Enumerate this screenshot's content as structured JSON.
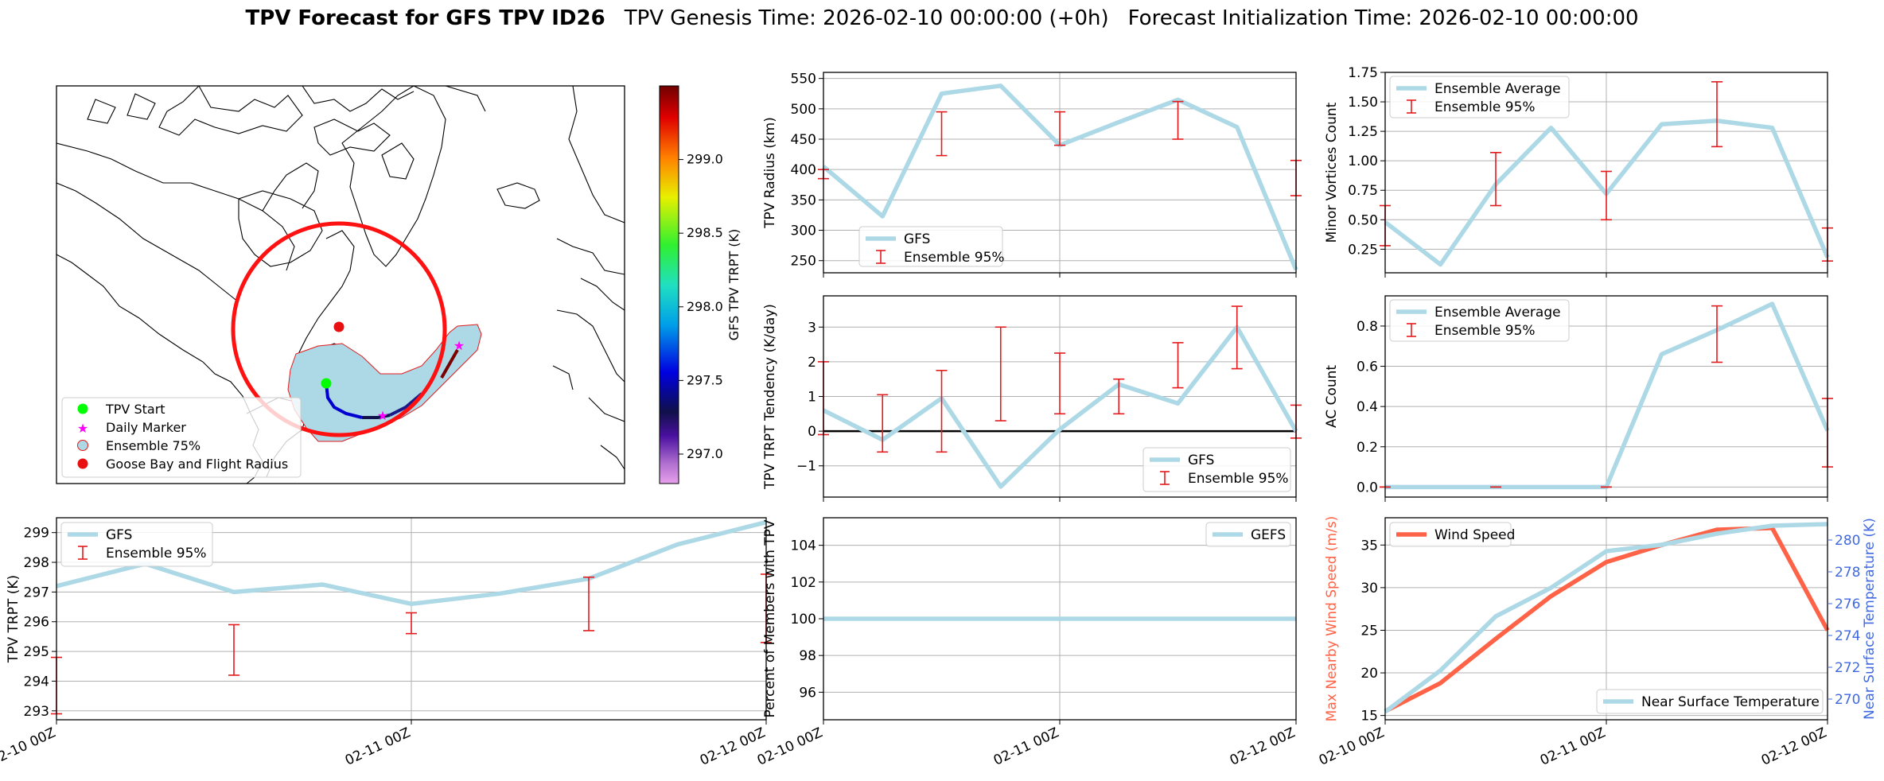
{
  "title": {
    "bold": "TPV Forecast for GFS TPV ID26",
    "genesis": "TPV Genesis Time: 2026-02-10 00:00:00 (+0h)",
    "init": "Forecast Initialization Time: 2026-02-10 00:00:00"
  },
  "map": {
    "colorbar_label": "GFS TPV TRPT (K)",
    "colorbar_ticks": [
      "297.0",
      "297.5",
      "298.0",
      "298.5",
      "299.0"
    ],
    "colorbar_range": [
      296.8,
      299.5
    ],
    "legend": [
      "TPV Start",
      "Daily Marker",
      "Ensemble 75%",
      "Goose Bay and Flight Radius"
    ]
  },
  "colors": {
    "line": "#ADD8E6",
    "error": "#E41A1C",
    "wind": "#FF6347",
    "temp_axis": "#4169E1",
    "circle": "#FF0000",
    "start": "#00FF00",
    "marker": "#FF00FF"
  },
  "chart_data": [
    {
      "id": "radius",
      "type": "line",
      "ylabel": "TPV Radius (km)",
      "ylim": [
        230,
        560
      ],
      "yticks": [
        "250",
        "300",
        "350",
        "400",
        "450",
        "500",
        "550"
      ],
      "x": [
        0,
        0.25,
        0.5,
        0.75,
        1.0,
        1.25,
        1.5,
        1.75,
        2.0
      ],
      "series": [
        {
          "name": "GFS",
          "values": [
            405,
            323,
            525,
            538,
            440,
            478,
            515,
            470,
            235
          ]
        }
      ],
      "errorbars": {
        "name": "Ensemble 95%",
        "x": [
          0,
          0.5,
          1.0,
          1.5,
          2.0
        ],
        "low": [
          385,
          423,
          440,
          450,
          357
        ],
        "high": [
          400,
          495,
          495,
          512,
          415
        ]
      },
      "legend": "bottom-left"
    },
    {
      "id": "minor",
      "type": "line",
      "ylabel": "Minor Vortices Count",
      "ylim": [
        0.05,
        1.75
      ],
      "yticks": [
        "0.25",
        "0.50",
        "0.75",
        "1.00",
        "1.25",
        "1.50",
        "1.75"
      ],
      "x": [
        0,
        0.25,
        0.5,
        0.75,
        1.0,
        1.25,
        1.5,
        1.75,
        2.0
      ],
      "series": [
        {
          "name": "Ensemble Average",
          "values": [
            0.48,
            0.12,
            0.8,
            1.28,
            0.72,
            1.31,
            1.34,
            1.28,
            0.18
          ]
        }
      ],
      "errorbars": {
        "name": "Ensemble 95%",
        "x": [
          0,
          0.5,
          1.0,
          1.5,
          2.0
        ],
        "low": [
          0.28,
          0.62,
          0.5,
          1.12,
          0.15
        ],
        "high": [
          0.62,
          1.07,
          0.91,
          1.67,
          0.43
        ]
      },
      "legend": "top-left"
    },
    {
      "id": "tend",
      "type": "line",
      "ylabel": "TPV TRPT Tendency (K/day)",
      "ylim": [
        -1.9,
        3.9
      ],
      "yticks": [
        "−1",
        "0",
        "1",
        "2",
        "3"
      ],
      "zero_line": true,
      "x": [
        0,
        0.25,
        0.5,
        0.75,
        1.0,
        1.25,
        1.5,
        1.75,
        2.0
      ],
      "series": [
        {
          "name": "GFS",
          "values": [
            0.6,
            -0.25,
            0.95,
            -1.6,
            0.05,
            1.35,
            0.8,
            3.0,
            0.0
          ]
        }
      ],
      "errorbars": {
        "name": "Ensemble 95%",
        "x": [
          0,
          0.25,
          0.5,
          0.75,
          1.0,
          1.25,
          1.5,
          1.75,
          2.0
        ],
        "low": [
          -0.1,
          -0.6,
          -0.6,
          0.3,
          0.5,
          0.5,
          1.25,
          1.8,
          -0.2
        ],
        "high": [
          2.0,
          1.05,
          1.75,
          3.0,
          2.25,
          1.5,
          2.55,
          3.6,
          0.75
        ]
      },
      "legend": "bottom-right"
    },
    {
      "id": "ac",
      "type": "line",
      "ylabel": "AC Count",
      "ylim": [
        -0.05,
        0.95
      ],
      "yticks": [
        "0.0",
        "0.2",
        "0.4",
        "0.6",
        "0.8"
      ],
      "x": [
        0,
        0.25,
        0.5,
        0.75,
        1.0,
        1.25,
        1.5,
        1.75,
        2.0
      ],
      "series": [
        {
          "name": "Ensemble Average",
          "values": [
            0,
            0,
            0,
            0,
            0,
            0.66,
            0.78,
            0.91,
            0.28
          ]
        }
      ],
      "errorbars": {
        "name": "Ensemble 95%",
        "x": [
          0,
          0.5,
          1.0,
          1.5,
          2.0
        ],
        "low": [
          0,
          0,
          0,
          0.62,
          0.1
        ],
        "high": [
          0,
          0,
          0,
          0.9,
          0.44
        ]
      },
      "legend": "top-left"
    },
    {
      "id": "trpt",
      "type": "line",
      "ylabel": "TPV TRPT (K)",
      "ylim": [
        292.7,
        299.5
      ],
      "yticks": [
        "293",
        "294",
        "295",
        "296",
        "297",
        "298",
        "299"
      ],
      "xticks": [
        "02-10 00Z",
        "02-11 00Z",
        "02-12 00Z"
      ],
      "x": [
        0,
        0.25,
        0.5,
        0.75,
        1.0,
        1.25,
        1.5,
        1.75,
        2.0
      ],
      "series": [
        {
          "name": "GFS",
          "values": [
            297.2,
            297.95,
            297.0,
            297.25,
            296.6,
            296.95,
            297.45,
            298.6,
            299.35
          ]
        }
      ],
      "errorbars": {
        "name": "Ensemble 95%",
        "x": [
          0,
          0.5,
          1.0,
          1.5,
          2.0
        ],
        "low": [
          292.9,
          294.2,
          295.6,
          295.7,
          295.3
        ],
        "high": [
          294.8,
          295.9,
          296.3,
          297.5,
          297.6
        ]
      },
      "legend": "top-left"
    },
    {
      "id": "pct",
      "type": "line",
      "ylabel": "Percent of Members with TPV",
      "ylim": [
        94.5,
        105.5
      ],
      "yticks": [
        "96",
        "98",
        "100",
        "102",
        "104"
      ],
      "xticks": [
        "02-10 00Z",
        "02-11 00Z",
        "02-12 00Z"
      ],
      "x": [
        0,
        2.0
      ],
      "series": [
        {
          "name": "GEFS",
          "values": [
            100,
            100
          ]
        }
      ],
      "legend": "top-right"
    },
    {
      "id": "wind",
      "type": "line",
      "ylabel": "Max Nearby Wind Speed (m/s)",
      "ylabel2": "Near Surface Temperature (K)",
      "ylim": [
        14.5,
        38.2
      ],
      "ylim2": [
        268.7,
        281.4
      ],
      "yticks": [
        "15",
        "20",
        "25",
        "30",
        "35"
      ],
      "yticks2": [
        "270",
        "272",
        "274",
        "276",
        "278",
        "280"
      ],
      "xticks": [
        "02-10 00Z",
        "02-11 00Z",
        "02-12 00Z"
      ],
      "x": [
        0,
        0.25,
        0.5,
        0.75,
        1.0,
        1.25,
        1.5,
        1.75,
        2.0
      ],
      "series": [
        {
          "name": "Wind Speed",
          "axis": "left",
          "values": [
            15.5,
            18.8,
            24.0,
            29.0,
            33.0,
            35.0,
            36.8,
            37.0,
            25.0
          ]
        },
        {
          "name": "Near Surface Temperature",
          "axis": "right",
          "values": [
            269.2,
            271.8,
            275.2,
            277.0,
            279.3,
            279.7,
            280.4,
            280.9,
            281.0
          ]
        }
      ],
      "legend": "split: top-left / bottom-right"
    }
  ]
}
